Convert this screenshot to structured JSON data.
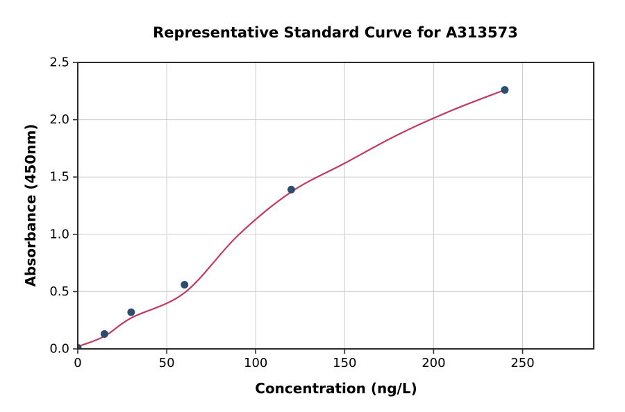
{
  "chart_data": {
    "type": "scatter",
    "title": "Representative Standard Curve for A313573",
    "xlabel": "Concentration (ng/L)",
    "ylabel": "Absorbance (450nm)",
    "xlim": [
      0,
      290
    ],
    "ylim": [
      0,
      2.5
    ],
    "x_ticks": [
      0,
      50,
      100,
      150,
      200,
      250
    ],
    "y_ticks": [
      "0.0",
      "0.5",
      "1.0",
      "1.5",
      "2.0",
      "2.5"
    ],
    "grid": true,
    "legend_position": "none",
    "points": [
      {
        "x": 0,
        "y": 0.01
      },
      {
        "x": 15,
        "y": 0.13
      },
      {
        "x": 30,
        "y": 0.32
      },
      {
        "x": 60,
        "y": 0.56
      },
      {
        "x": 120,
        "y": 1.39
      },
      {
        "x": 240,
        "y": 2.26
      }
    ],
    "fit_curve": {
      "description": "smooth sigmoidal (4PL) standard-curve fit from x=0 to x=240",
      "anchors": [
        [
          0,
          0.02
        ],
        [
          15,
          0.11
        ],
        [
          30,
          0.27
        ],
        [
          60,
          0.49
        ],
        [
          90,
          0.99
        ],
        [
          120,
          1.37
        ],
        [
          150,
          1.62
        ],
        [
          180,
          1.87
        ],
        [
          210,
          2.08
        ],
        [
          240,
          2.26
        ]
      ]
    },
    "colors": {
      "marker": "#2e4d6e",
      "curve": "#c03a60",
      "grid": "#cccccc",
      "spine": "#2b2b2b",
      "tick_text": "#000000",
      "background": "#ffffff"
    }
  }
}
